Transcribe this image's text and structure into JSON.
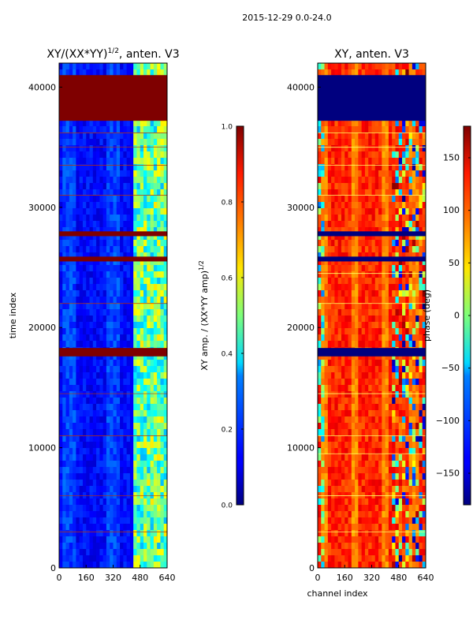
{
  "figure": {
    "suptitle": "2015-12-29 0.0-24.0"
  },
  "chart_data": [
    {
      "type": "heatmap",
      "id": "amp",
      "title": "XY/(XX*YY)",
      "title_exponent": "1/2",
      "title_suffix": ", anten. V3",
      "xlabel": "",
      "ylabel": "time index",
      "xlim": [
        0,
        640
      ],
      "ylim": [
        0,
        42000
      ],
      "xticks": [
        0,
        160,
        320,
        480,
        640
      ],
      "yticks": [
        0,
        10000,
        20000,
        30000,
        40000
      ],
      "colormap": "jet",
      "colorbar": {
        "label": "XY amp. / (XX*YY amp)",
        "label_exponent": "1/2",
        "range": [
          0.0,
          1.0
        ],
        "ticks": [
          "0.0",
          "0.2",
          "0.4",
          "0.6",
          "0.8",
          "1.0"
        ]
      },
      "features": {
        "saturated_bands": [
          [
            37200,
            41000
          ],
          [
            27600,
            28000
          ],
          [
            25500,
            25900
          ],
          [
            17600,
            18300
          ]
        ],
        "bright_channel_region": [
          440,
          640
        ],
        "typical_value_low_channels": 0.15,
        "typical_value_high_channels": 0.45
      }
    },
    {
      "type": "heatmap",
      "id": "phase",
      "title": "XY, anten. V3",
      "xlabel": "channel index",
      "ylabel": "",
      "xlim": [
        0,
        640
      ],
      "ylim": [
        0,
        42000
      ],
      "xticks": [
        0,
        160,
        320,
        480,
        640
      ],
      "yticks": [
        0,
        10000,
        20000,
        30000,
        40000
      ],
      "colormap": "jet",
      "colorbar": {
        "label": "phase (deg)",
        "range": [
          -180,
          180
        ],
        "ticks": [
          "−150",
          "−100",
          "−50",
          "0",
          "50",
          "100",
          "150"
        ]
      },
      "features": {
        "flagged_bands": [
          [
            37200,
            41000
          ],
          [
            27600,
            28000
          ],
          [
            25500,
            25900
          ],
          [
            17600,
            18300
          ]
        ],
        "typical_phase_deg": 140
      }
    }
  ]
}
